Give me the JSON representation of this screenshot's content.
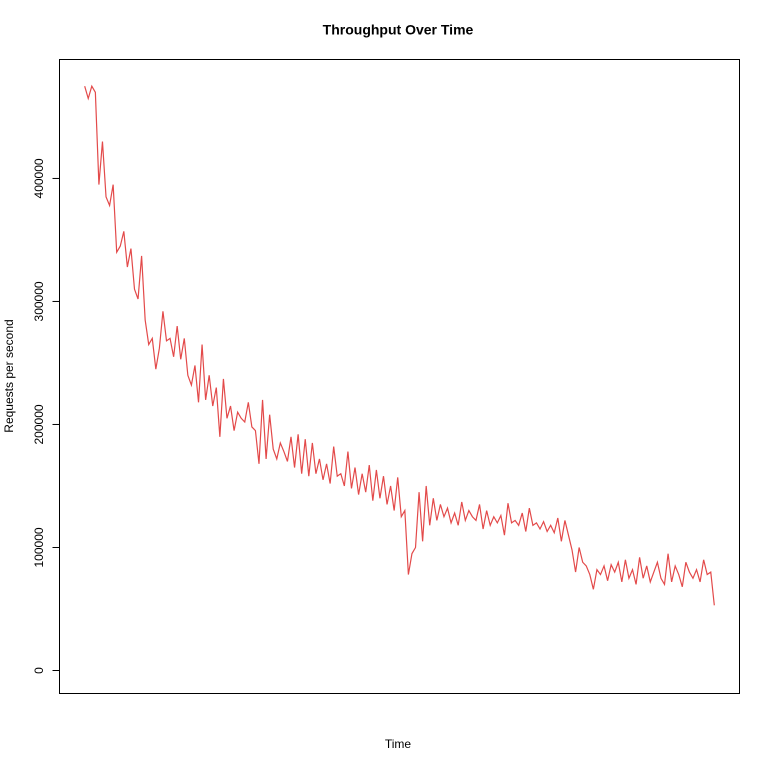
{
  "chart_data": {
    "type": "line",
    "title": "Throughput Over Time",
    "x_label": "Time",
    "y_label": "Requests per second",
    "color": "#e34a4a",
    "ylim": [
      -18700,
      496700
    ],
    "yticks": [
      0,
      100000,
      200000,
      300000,
      400000
    ],
    "values": [
      475000,
      465000,
      475000,
      470000,
      395000,
      430000,
      385000,
      378000,
      395000,
      340000,
      345000,
      357000,
      328000,
      343000,
      310000,
      302000,
      337000,
      285000,
      265000,
      270000,
      245000,
      262000,
      292000,
      268000,
      270000,
      255000,
      280000,
      253000,
      270000,
      240000,
      232000,
      248000,
      218000,
      265000,
      220000,
      240000,
      215000,
      230000,
      190000,
      237000,
      205000,
      215000,
      195000,
      210000,
      205000,
      202000,
      218000,
      198000,
      195000,
      168000,
      220000,
      172000,
      208000,
      180000,
      172000,
      185000,
      178000,
      170000,
      190000,
      165000,
      192000,
      160000,
      188000,
      158000,
      185000,
      160000,
      172000,
      155000,
      168000,
      152000,
      182000,
      158000,
      160000,
      150000,
      178000,
      148000,
      165000,
      143000,
      160000,
      145000,
      167000,
      138000,
      163000,
      140000,
      158000,
      135000,
      150000,
      130000,
      157000,
      125000,
      130000,
      78000,
      95000,
      100000,
      145000,
      105000,
      150000,
      118000,
      140000,
      122000,
      135000,
      125000,
      132000,
      120000,
      128000,
      118000,
      137000,
      122000,
      130000,
      125000,
      122000,
      135000,
      115000,
      130000,
      118000,
      125000,
      120000,
      126000,
      110000,
      136000,
      120000,
      122000,
      118000,
      128000,
      113000,
      132000,
      118000,
      120000,
      115000,
      121000,
      113000,
      118000,
      112000,
      124000,
      105000,
      122000,
      110000,
      98000,
      80000,
      100000,
      88000,
      85000,
      78000,
      66000,
      82000,
      78000,
      85000,
      73000,
      86000,
      80000,
      88000,
      72000,
      90000,
      75000,
      82000,
      70000,
      92000,
      75000,
      85000,
      72000,
      80000,
      88000,
      75000,
      70000,
      95000,
      72000,
      85000,
      78000,
      68000,
      88000,
      80000,
      75000,
      82000,
      72000,
      90000,
      78000,
      80000,
      53000
    ]
  }
}
